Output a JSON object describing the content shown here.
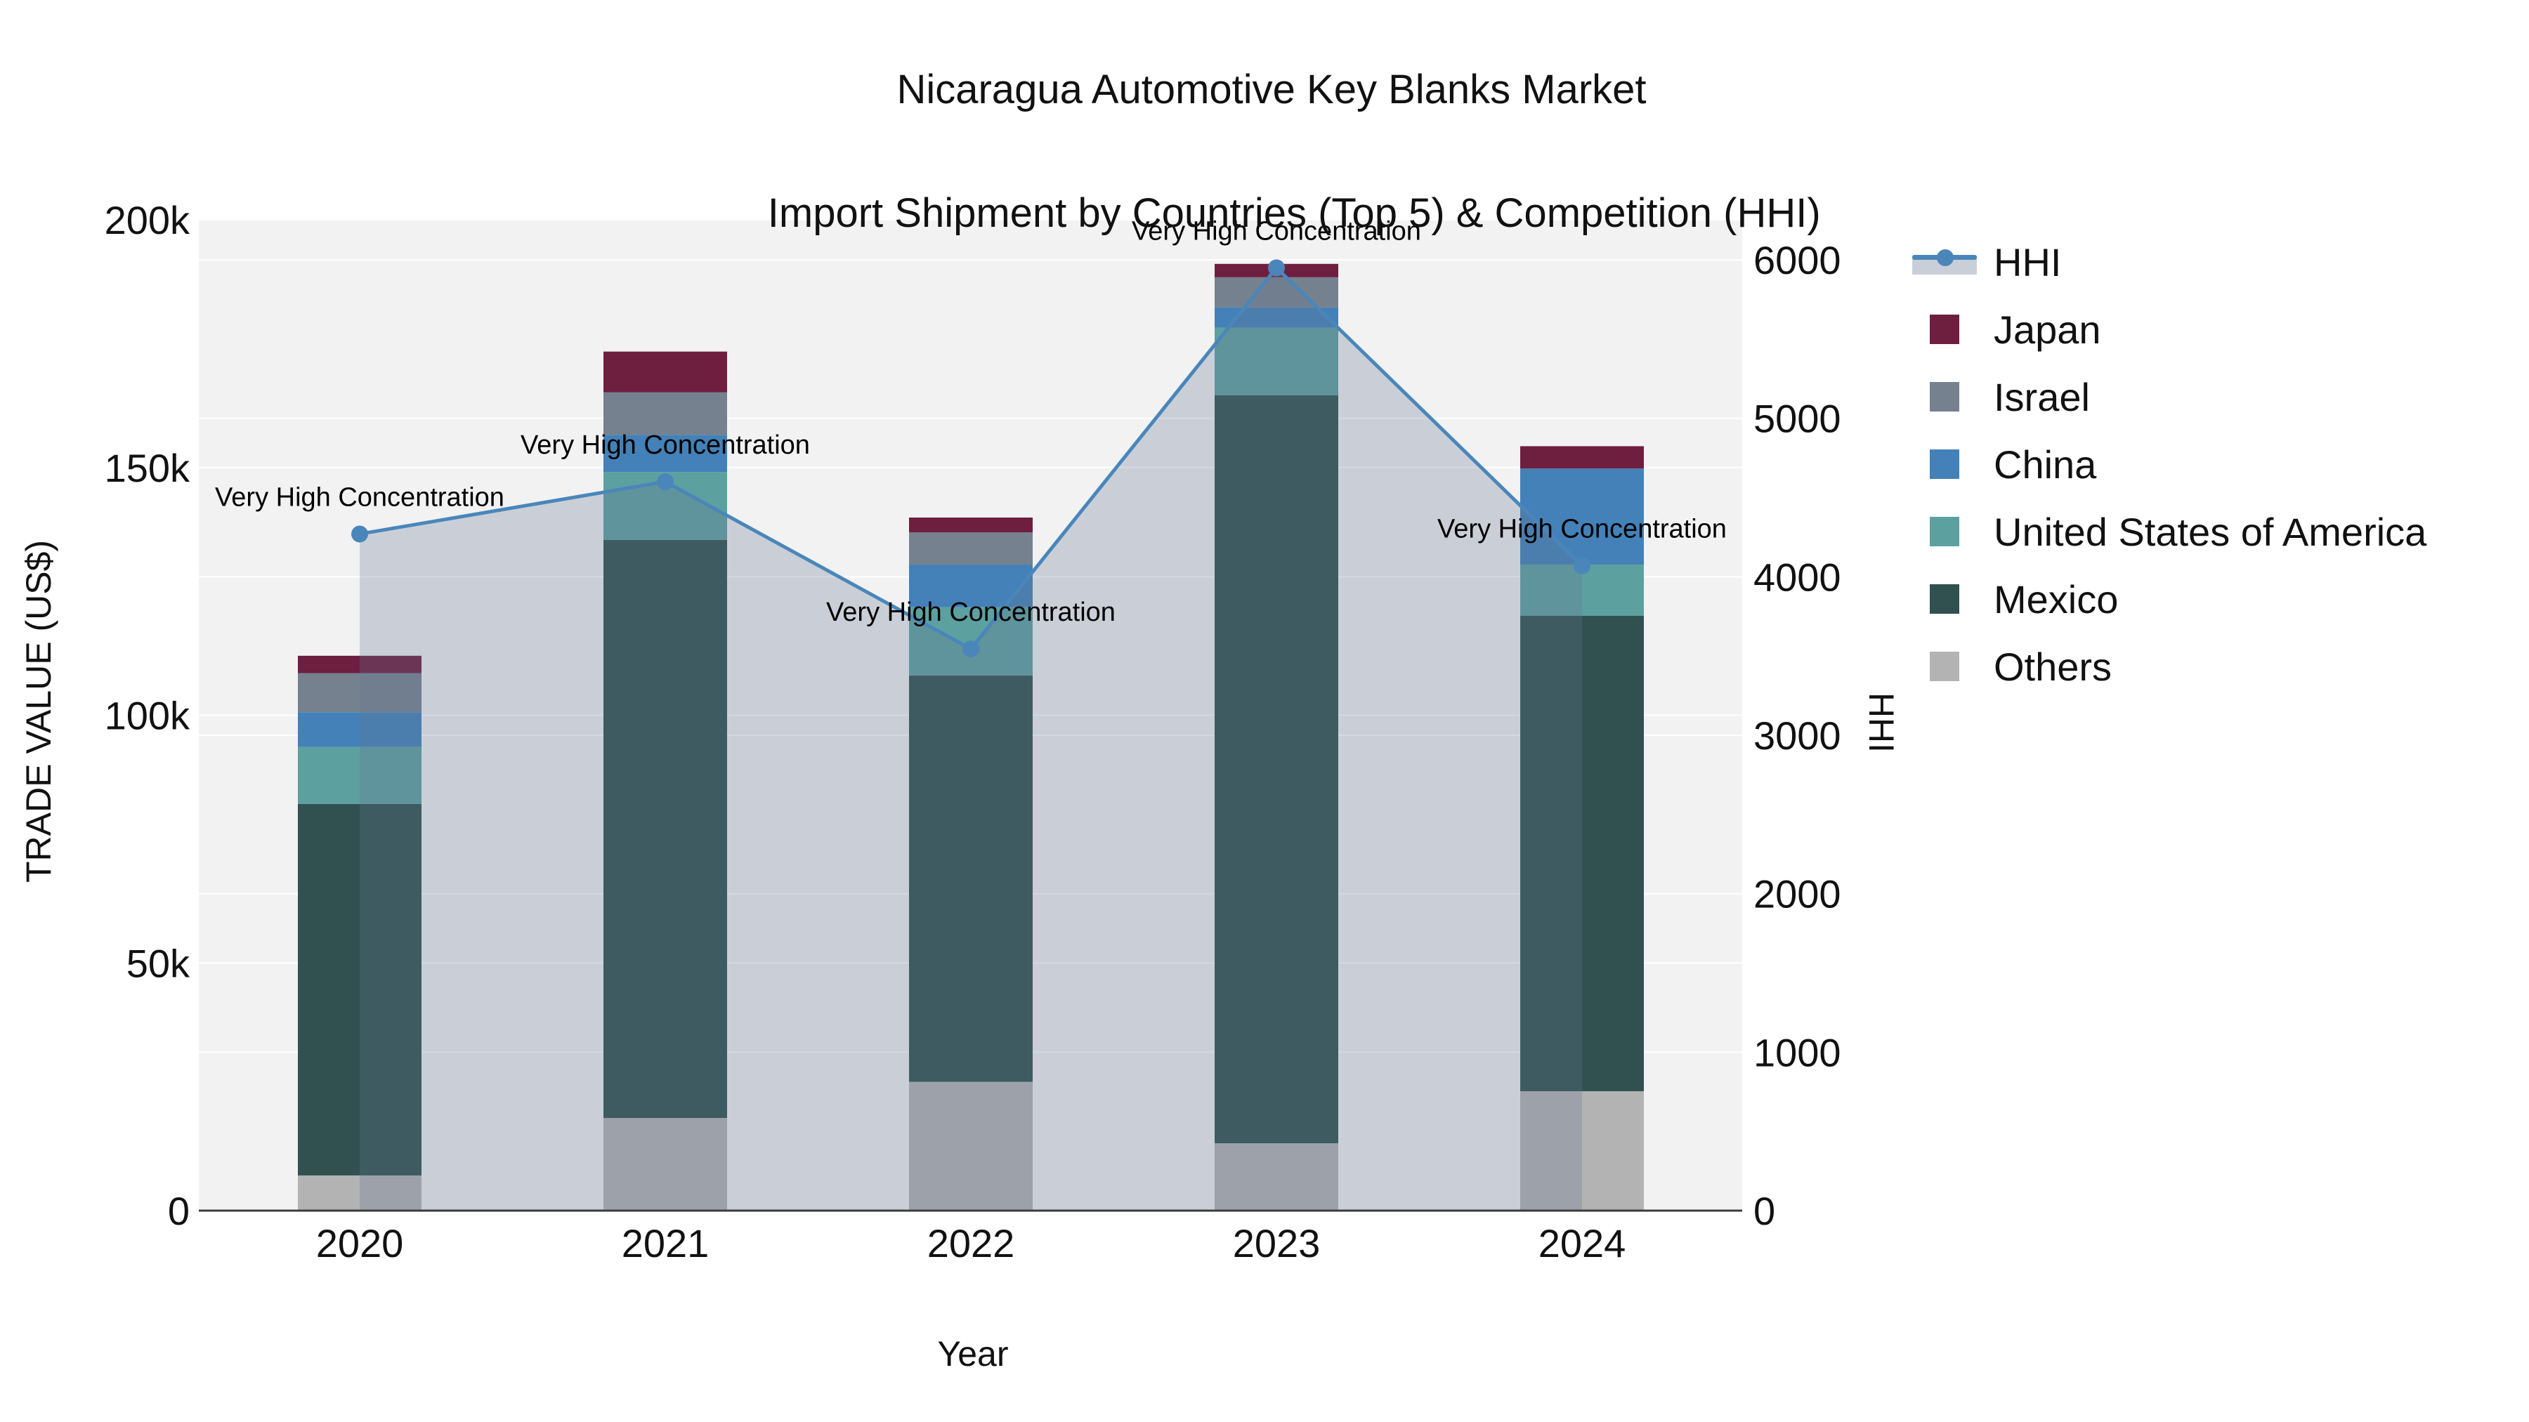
{
  "title": {
    "line1": "Nicaragua Automotive Key Blanks Market",
    "line2": "Import Shipment by Countries (Top 5) & Competition (HHI)"
  },
  "axes": {
    "left": {
      "title": "TRADE VALUE (US$)",
      "ticks": [
        {
          "label": "0",
          "value": 0
        },
        {
          "label": "50k",
          "value": 50000
        },
        {
          "label": "100k",
          "value": 100000
        },
        {
          "label": "150k",
          "value": 150000
        },
        {
          "label": "200k",
          "value": 200000
        }
      ]
    },
    "right": {
      "title": "HHI",
      "ticks": [
        {
          "label": "0",
          "value": 0
        },
        {
          "label": "1000",
          "value": 1000
        },
        {
          "label": "2000",
          "value": 2000
        },
        {
          "label": "3000",
          "value": 3000
        },
        {
          "label": "4000",
          "value": 4000
        },
        {
          "label": "5000",
          "value": 5000
        },
        {
          "label": "6000",
          "value": 6000
        }
      ]
    },
    "x": {
      "title": "Year",
      "categories": [
        "2020",
        "2021",
        "2022",
        "2023",
        "2024"
      ]
    }
  },
  "legend": {
    "items": [
      {
        "label": "HHI",
        "type": "line",
        "color": "#4a86ba",
        "band": "#c9cfd8"
      },
      {
        "label": "Japan",
        "type": "square",
        "color": "#6e1e3f"
      },
      {
        "label": "Israel",
        "type": "square",
        "color": "#75818f"
      },
      {
        "label": "China",
        "type": "square",
        "color": "#4381b8"
      },
      {
        "label": "United States of America",
        "type": "square",
        "color": "#5da0a0"
      },
      {
        "label": "Mexico",
        "type": "square",
        "color": "#305150"
      },
      {
        "label": "Others",
        "type": "square",
        "color": "#b3b3b3"
      }
    ]
  },
  "colors": {
    "plot_bg": "#f2f2f2",
    "grid": "#ffffff",
    "axis_line": "#3c3c3c",
    "text": "#111111",
    "annotation": "#000000"
  },
  "chart_data": {
    "type": "bar+line",
    "title": "Nicaragua Automotive Key Blanks Market — Import Shipment by Countries (Top 5) & Competition (HHI)",
    "categories": [
      "2020",
      "2021",
      "2022",
      "2023",
      "2024"
    ],
    "xlabel": "Year",
    "ylabel": "TRADE VALUE (US$)",
    "y2label": "HHI",
    "ylim": [
      0,
      200000
    ],
    "y2lim": [
      0,
      6253
    ],
    "grid": "on",
    "legend_position": "right",
    "series": [
      {
        "name": "Others",
        "color": "#b3b3b3",
        "values": [
          7100,
          18700,
          26000,
          13600,
          24100
        ]
      },
      {
        "name": "Mexico",
        "color": "#305150",
        "values": [
          75000,
          116700,
          82000,
          151000,
          96000
        ]
      },
      {
        "name": "United States of America",
        "color": "#5da0a0",
        "values": [
          11500,
          13700,
          13800,
          13600,
          10300
        ]
      },
      {
        "name": "China",
        "color": "#4381b8",
        "values": [
          7000,
          7500,
          8600,
          4100,
          19400
        ]
      },
      {
        "name": "Israel",
        "color": "#75818f",
        "values": [
          7900,
          8600,
          6500,
          6100,
          0
        ]
      },
      {
        "name": "Japan",
        "color": "#6e1e3f",
        "values": [
          3500,
          8200,
          3000,
          2700,
          4500
        ]
      }
    ],
    "bar_totals": [
      112000,
      173400,
      140100,
      191100,
      154300
    ],
    "line_series": {
      "name": "HHI",
      "axis": "right",
      "color": "#4a86ba",
      "marker": "circle",
      "area_fill": "rgba(101,119,148,0.28)",
      "values": [
        4270,
        4600,
        3545,
        5950,
        4070
      ]
    },
    "annotations": [
      {
        "category": "2020",
        "label": "Very High Concentration"
      },
      {
        "category": "2021",
        "label": "Very High Concentration"
      },
      {
        "category": "2022",
        "label": "Very High Concentration"
      },
      {
        "category": "2023",
        "label": "Very High Concentration"
      },
      {
        "category": "2024",
        "label": "Very High Concentration"
      }
    ]
  }
}
